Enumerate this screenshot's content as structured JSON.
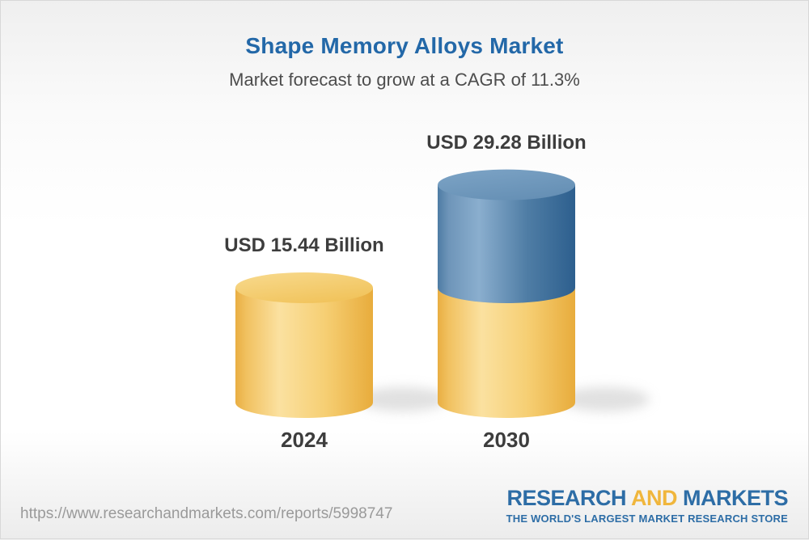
{
  "page": {
    "title": "Shape Memory Alloys Market",
    "subtitle": "Market forecast to grow at a CAGR of 11.3%"
  },
  "chart_data": {
    "type": "bar",
    "variant": "3d-cylinder-stacked",
    "title": "Shape Memory Alloys Market",
    "subtitle": "Market forecast to grow at a CAGR of 11.3%",
    "unit": "USD Billion",
    "cagr_percent": 11.3,
    "categories": [
      "2024",
      "2030"
    ],
    "values": [
      15.44,
      29.28
    ],
    "value_labels": [
      "USD 15.44 Billion",
      "USD 29.28 Billion"
    ],
    "axes": "none",
    "legend": "none",
    "colors": {
      "base_segment": "#F3C660",
      "growth_segment": "#4D7CA4"
    }
  },
  "footer": {
    "url": "https://www.researchandmarkets.com/reports/5998747",
    "logo": {
      "word1": "RESEARCH",
      "word2": "AND",
      "word3": "MARKETS",
      "tagline": "THE WORLD'S LARGEST MARKET RESEARCH STORE",
      "brand_blue": "#2D6DA6",
      "brand_gold": "#F0B63C"
    }
  }
}
